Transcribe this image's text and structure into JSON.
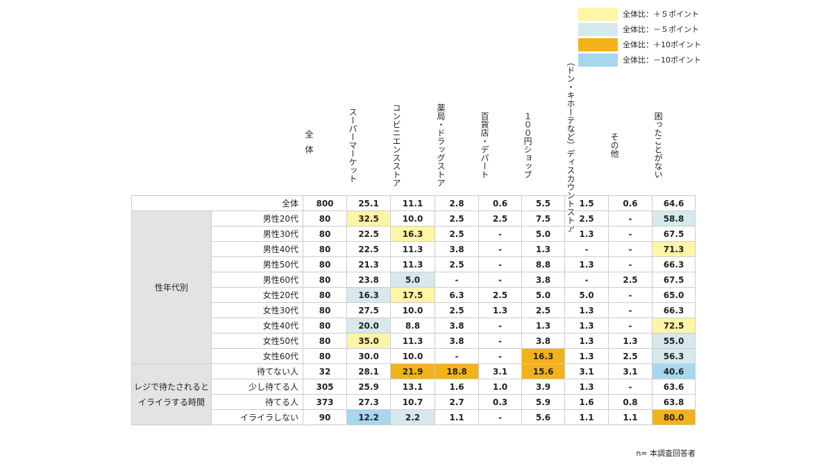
{
  "legend": [
    {
      "label": "全体比：＋５ポイント",
      "color": "#fff5a6"
    },
    {
      "label": "全体比：－５ポイント",
      "color": "#d6e9ec"
    },
    {
      "label": "全体比：＋10ポイント",
      "color": "#f3b21a"
    },
    {
      "label": "全体比：－10ポイント",
      "color": "#a7d7ef"
    }
  ],
  "table": {
    "columns": [
      [
        "全体"
      ],
      [
        "スーパーマーケット"
      ],
      [
        "コンビニエンスストア"
      ],
      [
        "薬局・ドラッグストア"
      ],
      [
        "百貨店・デパート"
      ],
      [
        "１００円ショップ"
      ],
      [
        "ディスカウントストア",
        "（ドン・キホーテなど）"
      ],
      [
        "その他"
      ],
      [
        "困ったことがない"
      ]
    ],
    "total": {
      "label": "全体",
      "cells": [
        "800",
        "25.1",
        "11.1",
        "2.8",
        "0.6",
        "5.5",
        "1.5",
        "0.6",
        "64.6"
      ]
    },
    "groups": [
      {
        "label": [
          "性年代別"
        ],
        "rows": [
          {
            "label": "男性20代",
            "cells": [
              "80",
              "32.5",
              "10.0",
              "2.5",
              "2.5",
              "7.5",
              "2.5",
              "-",
              "58.8"
            ],
            "colors": [
              null,
              "#fff5a6",
              null,
              null,
              null,
              null,
              null,
              null,
              "#d6e9ec"
            ]
          },
          {
            "label": "男性30代",
            "cells": [
              "80",
              "22.5",
              "16.3",
              "2.5",
              "-",
              "5.0",
              "1.3",
              "-",
              "67.5"
            ],
            "colors": [
              null,
              null,
              "#fff5a6",
              null,
              null,
              null,
              null,
              null,
              null
            ]
          },
          {
            "label": "男性40代",
            "cells": [
              "80",
              "22.5",
              "11.3",
              "3.8",
              "-",
              "1.3",
              "-",
              "-",
              "71.3"
            ],
            "colors": [
              null,
              null,
              null,
              null,
              null,
              null,
              null,
              null,
              "#fff5a6"
            ]
          },
          {
            "label": "男性50代",
            "cells": [
              "80",
              "21.3",
              "11.3",
              "2.5",
              "-",
              "8.8",
              "1.3",
              "-",
              "66.3"
            ],
            "colors": [
              null,
              null,
              null,
              null,
              null,
              null,
              null,
              null,
              null
            ]
          },
          {
            "label": "男性60代",
            "cells": [
              "80",
              "23.8",
              "5.0",
              "-",
              "-",
              "3.8",
              "-",
              "2.5",
              "67.5"
            ],
            "colors": [
              null,
              null,
              "#d6e9ec",
              null,
              null,
              null,
              null,
              null,
              null
            ]
          },
          {
            "label": "女性20代",
            "cells": [
              "80",
              "16.3",
              "17.5",
              "6.3",
              "2.5",
              "5.0",
              "5.0",
              "-",
              "65.0"
            ],
            "colors": [
              null,
              "#d6e9ec",
              "#fff5a6",
              null,
              null,
              null,
              null,
              null,
              null
            ]
          },
          {
            "label": "女性30代",
            "cells": [
              "80",
              "27.5",
              "10.0",
              "2.5",
              "1.3",
              "2.5",
              "1.3",
              "-",
              "66.3"
            ],
            "colors": [
              null,
              null,
              null,
              null,
              null,
              null,
              null,
              null,
              null
            ]
          },
          {
            "label": "女性40代",
            "cells": [
              "80",
              "20.0",
              "8.8",
              "3.8",
              "-",
              "1.3",
              "1.3",
              "-",
              "72.5"
            ],
            "colors": [
              null,
              "#d6e9ec",
              null,
              null,
              null,
              null,
              null,
              null,
              "#fff5a6"
            ]
          },
          {
            "label": "女性50代",
            "cells": [
              "80",
              "35.0",
              "11.3",
              "3.8",
              "-",
              "3.8",
              "1.3",
              "1.3",
              "55.0"
            ],
            "colors": [
              null,
              "#fff5a6",
              null,
              null,
              null,
              null,
              null,
              null,
              "#d6e9ec"
            ]
          },
          {
            "label": "女性60代",
            "cells": [
              "80",
              "30.0",
              "10.0",
              "-",
              "-",
              "16.3",
              "1.3",
              "2.5",
              "56.3"
            ],
            "colors": [
              null,
              null,
              null,
              null,
              null,
              "#f3b21a",
              null,
              null,
              "#d6e9ec"
            ]
          }
        ]
      },
      {
        "label": [
          "レジで待たされると",
          "イライラする時間"
        ],
        "rows": [
          {
            "label": "待てない人",
            "cells": [
              "32",
              "28.1",
              "21.9",
              "18.8",
              "3.1",
              "15.6",
              "3.1",
              "3.1",
              "40.6"
            ],
            "colors": [
              null,
              null,
              "#f3b21a",
              "#f3b21a",
              null,
              "#f3b21a",
              null,
              null,
              "#a7d7ef"
            ]
          },
          {
            "label": "少し待てる人",
            "cells": [
              "305",
              "25.9",
              "13.1",
              "1.6",
              "1.0",
              "3.9",
              "1.3",
              "-",
              "63.6"
            ],
            "colors": [
              null,
              null,
              null,
              null,
              null,
              null,
              null,
              null,
              null
            ]
          },
          {
            "label": "待てる人",
            "cells": [
              "373",
              "27.3",
              "10.7",
              "2.7",
              "0.3",
              "5.9",
              "1.6",
              "0.8",
              "63.8"
            ],
            "colors": [
              null,
              null,
              null,
              null,
              null,
              null,
              null,
              null,
              null
            ]
          },
          {
            "label": "イライラしない",
            "cells": [
              "90",
              "12.2",
              "2.2",
              "1.1",
              "-",
              "5.6",
              "1.1",
              "1.1",
              "80.0"
            ],
            "colors": [
              null,
              "#a7d7ef",
              "#d6e9ec",
              null,
              null,
              null,
              null,
              null,
              "#f3b21a"
            ]
          }
        ]
      }
    ]
  },
  "footer": "n= 本調査回答者"
}
